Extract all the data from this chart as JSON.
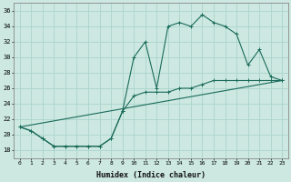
{
  "xlabel": "Humidex (Indice chaleur)",
  "bg_color": "#cce8e0",
  "line_color": "#1a6b5a",
  "grid_color": "#aad4cc",
  "xlim": [
    -0.5,
    23.5
  ],
  "ylim": [
    17,
    37
  ],
  "xticks": [
    0,
    1,
    2,
    3,
    4,
    5,
    6,
    7,
    8,
    9,
    10,
    11,
    12,
    13,
    14,
    15,
    16,
    17,
    18,
    19,
    20,
    21,
    22,
    23
  ],
  "yticks": [
    18,
    20,
    22,
    24,
    26,
    28,
    30,
    32,
    34,
    36
  ],
  "line1_x": [
    0,
    1,
    2,
    3,
    4,
    5,
    6,
    7,
    8,
    9,
    10,
    11,
    12,
    13,
    14,
    15,
    16,
    17,
    18,
    19,
    20,
    21,
    22,
    23
  ],
  "line1_y": [
    21,
    20.5,
    19.5,
    18.5,
    18.5,
    18.5,
    18.5,
    18.5,
    19.5,
    23,
    30,
    32,
    26,
    34,
    34.5,
    34,
    35.5,
    34.5,
    34,
    33,
    29,
    31,
    27.5,
    27
  ],
  "line2_x": [
    0,
    1,
    2,
    3,
    4,
    5,
    6,
    7,
    8,
    9,
    10,
    11,
    12,
    13,
    14,
    15,
    16,
    17,
    18,
    19,
    20,
    21,
    22,
    23
  ],
  "line2_y": [
    21,
    20.5,
    19.5,
    18.5,
    18.5,
    18.5,
    18.5,
    18.5,
    19.5,
    23,
    25,
    25.5,
    25.5,
    25.5,
    26,
    26,
    26.5,
    27,
    27,
    27,
    27,
    27,
    27,
    27
  ],
  "line3_x": [
    0,
    23
  ],
  "line3_y": [
    21,
    27
  ]
}
